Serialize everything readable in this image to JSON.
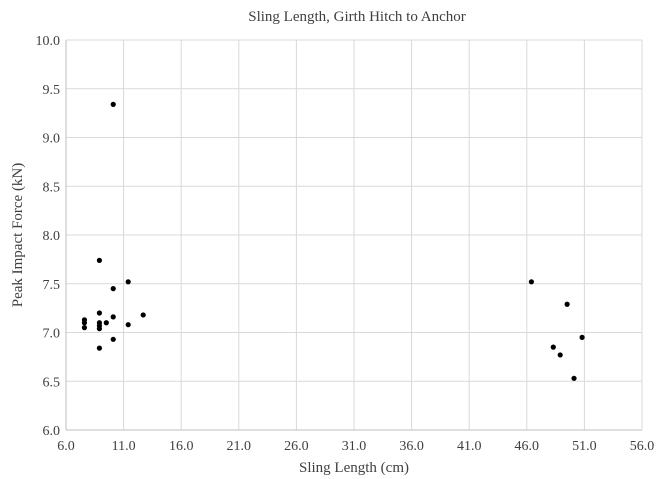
{
  "chart_data": {
    "type": "scatter",
    "title": "Sling Length, Girth Hitch to Anchor",
    "xlabel": "Sling Length (cm)",
    "ylabel": "Peak Impact Force (kN)",
    "xlim": [
      6.0,
      56.0
    ],
    "ylim": [
      6.0,
      10.0
    ],
    "x_ticks": [
      6.0,
      11.0,
      16.0,
      21.0,
      26.0,
      31.0,
      36.0,
      41.0,
      46.0,
      51.0,
      56.0
    ],
    "y_ticks": [
      6.0,
      6.5,
      7.0,
      7.5,
      8.0,
      8.5,
      9.0,
      9.5,
      10.0
    ],
    "x_tick_labels": [
      "6.0",
      "11.0",
      "16.0",
      "21.0",
      "26.0",
      "31.0",
      "36.0",
      "41.0",
      "46.0",
      "51.0",
      "56.0"
    ],
    "y_tick_labels": [
      "6.0",
      "6.5",
      "7.0",
      "7.5",
      "8.0",
      "8.5",
      "9.0",
      "9.5",
      "10.0"
    ],
    "grid": true,
    "marker_color": "#000000",
    "points": [
      {
        "x": 7.6,
        "y": 7.13
      },
      {
        "x": 7.6,
        "y": 7.1
      },
      {
        "x": 7.6,
        "y": 7.05
      },
      {
        "x": 8.9,
        "y": 7.74
      },
      {
        "x": 8.9,
        "y": 7.2
      },
      {
        "x": 8.9,
        "y": 7.1
      },
      {
        "x": 8.9,
        "y": 7.07
      },
      {
        "x": 8.9,
        "y": 7.04
      },
      {
        "x": 8.9,
        "y": 6.84
      },
      {
        "x": 9.5,
        "y": 7.1
      },
      {
        "x": 10.1,
        "y": 9.34
      },
      {
        "x": 10.1,
        "y": 7.45
      },
      {
        "x": 10.1,
        "y": 7.16
      },
      {
        "x": 10.1,
        "y": 6.93
      },
      {
        "x": 11.4,
        "y": 7.52
      },
      {
        "x": 11.4,
        "y": 7.08
      },
      {
        "x": 12.7,
        "y": 7.18
      },
      {
        "x": 46.4,
        "y": 7.52
      },
      {
        "x": 48.3,
        "y": 6.85
      },
      {
        "x": 48.9,
        "y": 6.77
      },
      {
        "x": 49.5,
        "y": 7.29
      },
      {
        "x": 50.1,
        "y": 6.53
      },
      {
        "x": 50.8,
        "y": 6.95
      }
    ]
  }
}
